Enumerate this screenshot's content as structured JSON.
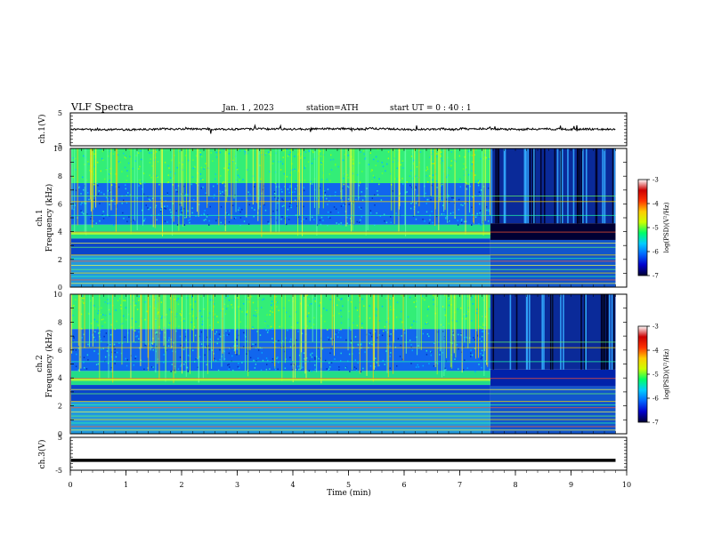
{
  "header": {
    "title": "VLF  Spectra",
    "date": "Jan.  1  , 2023",
    "station": "station=ATH",
    "start": "start  UT  =    0  : 40 : 1"
  },
  "chart_data": [
    {
      "type": "line",
      "name": "ch1-waveform",
      "ylabel": "ch.1(V)",
      "ylim": [
        -5,
        5
      ],
      "yticks": [
        "5",
        "-5"
      ],
      "xlim": [
        0,
        10
      ],
      "x_end": 9.8,
      "level": 0.1
    },
    {
      "type": "heatmap",
      "name": "ch1-spectrogram",
      "ylabel": "ch.1\nFrequency  (kHz)",
      "ylim": [
        0,
        10
      ],
      "yticks": [
        "0",
        "2",
        "4",
        "6",
        "8",
        "10"
      ],
      "xlim": [
        0,
        10
      ],
      "x_end": 9.8,
      "regime_change_min": 7.55
    },
    {
      "type": "heatmap",
      "name": "ch2-spectrogram",
      "ylabel": "ch.2\nFrequency  (kHz)",
      "ylim": [
        0,
        10
      ],
      "yticks": [
        "0",
        "2",
        "4",
        "6",
        "8",
        "10"
      ],
      "xlim": [
        0,
        10
      ],
      "x_end": 9.8,
      "regime_change_min": 7.55
    },
    {
      "type": "line",
      "name": "ch3-waveform",
      "ylabel": "ch.3(V)",
      "ylim": [
        -5,
        5
      ],
      "yticks": [
        "5",
        "-5"
      ],
      "xlim": [
        0,
        10
      ],
      "xlabel": "Time  (min)",
      "xticks": [
        "0",
        "1",
        "2",
        "3",
        "4",
        "5",
        "6",
        "7",
        "8",
        "9",
        "10"
      ],
      "x_end": 9.8,
      "level": -2.0
    }
  ],
  "colorbar": {
    "label": "log(PSD)(V²/Hz)",
    "ticks": [
      "-3",
      "-4",
      "-5",
      "-6",
      "-7"
    ],
    "range": [
      -7,
      -3
    ],
    "colors": [
      "#000033",
      "#0000cc",
      "#0066ff",
      "#00ccff",
      "#00ff66",
      "#ccff00",
      "#ffcc00",
      "#ff3300",
      "#cc0000",
      "#ffffff"
    ]
  }
}
